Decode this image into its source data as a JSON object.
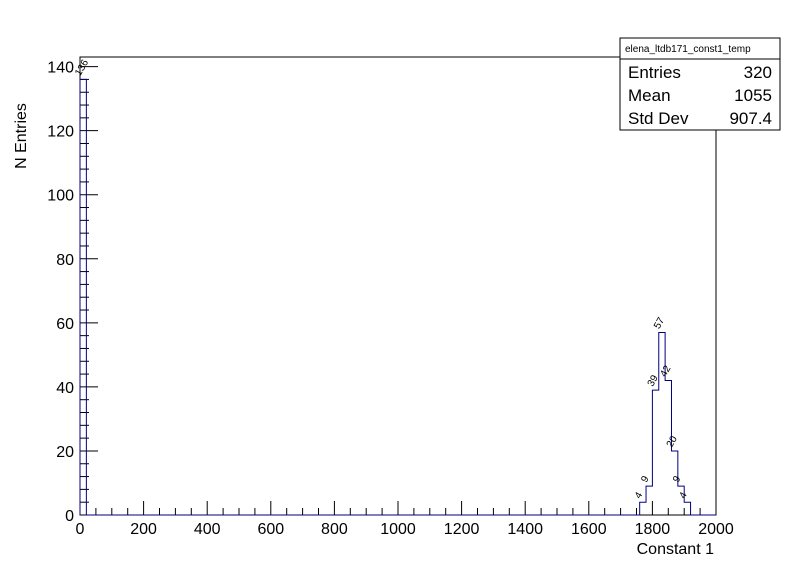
{
  "chart_data": {
    "type": "histogram",
    "title": "",
    "xlabel": "Constant 1",
    "ylabel": "N Entries",
    "xlim": [
      0,
      2000
    ],
    "ylim": [
      0,
      143
    ],
    "bin_width": 20,
    "x_ticks": [
      0,
      200,
      400,
      600,
      800,
      1000,
      1200,
      1400,
      1600,
      1800,
      2000
    ],
    "y_ticks": [
      0,
      20,
      40,
      60,
      80,
      100,
      120,
      140
    ],
    "line_color": "#000080",
    "bins": [
      {
        "x": 0,
        "value": 136,
        "label": "136"
      },
      {
        "x": 1760,
        "value": 4,
        "label": "4"
      },
      {
        "x": 1780,
        "value": 9,
        "label": "9"
      },
      {
        "x": 1800,
        "value": 39,
        "label": "39"
      },
      {
        "x": 1820,
        "value": 57,
        "label": "57"
      },
      {
        "x": 1840,
        "value": 42,
        "label": "42"
      },
      {
        "x": 1860,
        "value": 20,
        "label": "20"
      },
      {
        "x": 1880,
        "value": 9,
        "label": "9"
      },
      {
        "x": 1900,
        "value": 4,
        "label": "4"
      }
    ],
    "stats": {
      "name": "elena_ltdb171_const1_temp",
      "rows": [
        {
          "label": "Entries",
          "value": "320"
        },
        {
          "label": "Mean",
          "value": "1055"
        },
        {
          "label": "Std Dev",
          "value": "907.4"
        }
      ]
    }
  }
}
